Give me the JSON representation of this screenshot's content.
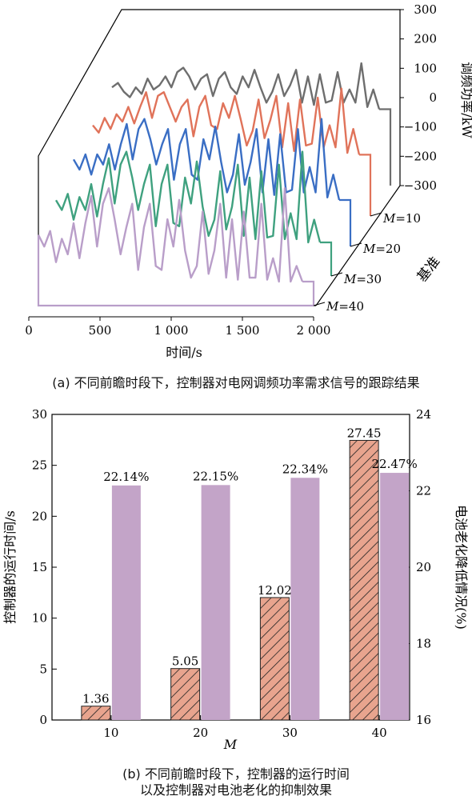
{
  "chart_data": [
    {
      "type": "line",
      "view": "3d-waterfall",
      "caption": "(a) 不同前瞻时段下，控制器对电网调频功率需求信号的跟踪结果",
      "xlabel": "时间/s",
      "x_ticks": [
        "0",
        "500",
        "1 000",
        "1 500",
        "2 000"
      ],
      "xlim": [
        0,
        2000
      ],
      "zlabel": "调频功率/kW",
      "z_ticks": [
        "300",
        "200",
        "100",
        "0",
        "−100",
        "−200",
        "−300"
      ],
      "zlim": [
        -300,
        300
      ],
      "depth_label": "基准",
      "series": [
        {
          "name": "基准",
          "color": "#6e6e6e",
          "values": [
            -60,
            -20,
            -100,
            -150,
            -60,
            -120,
            20,
            -80,
            -40,
            40,
            -60,
            80,
            120,
            40,
            -80,
            20,
            60,
            -140,
            20,
            80,
            -60,
            -120,
            40,
            -60,
            100,
            -60,
            -200,
            -100,
            60,
            -140,
            -40,
            100,
            -200,
            40,
            -220,
            60,
            -200,
            -180,
            80,
            -200,
            -80,
            -200,
            160,
            -240,
            -80,
            -260
          ]
        },
        {
          "name": "M=10",
          "color": "#e0735a",
          "values": [
            -120,
            -160,
            -80,
            -140,
            -60,
            -100,
            -20,
            -110,
            -20,
            60,
            -80,
            40,
            60,
            -20,
            -100,
            -20,
            20,
            -180,
            -20,
            40,
            -120,
            -140,
            0,
            -80,
            40,
            -90,
            -230,
            -150,
            20,
            -190,
            -90,
            40,
            -240,
            0,
            -260,
            20,
            -230,
            -220,
            30,
            -240,
            -120,
            -240,
            80,
            -270,
            -140,
            -280
          ]
        },
        {
          "name": "M=20",
          "color": "#3a6ec4",
          "values": [
            -140,
            -180,
            -120,
            -200,
            -120,
            -160,
            -80,
            -180,
            -80,
            0,
            -140,
            -20,
            20,
            -60,
            -160,
            -80,
            -20,
            -220,
            -80,
            -20,
            -200,
            -220,
            -60,
            -140,
            -10,
            -150,
            -270,
            -200,
            -40,
            -240,
            -150,
            -20,
            -270,
            -60,
            -280,
            -40,
            -270,
            -260,
            -20,
            -270,
            -170,
            -270,
            20,
            -290,
            -200,
            -300
          ]
        },
        {
          "name": "M=30",
          "color": "#3fa17f",
          "values": [
            -170,
            -200,
            -150,
            -230,
            -160,
            -200,
            -120,
            -220,
            -120,
            -40,
            -180,
            -60,
            -20,
            -100,
            -200,
            -120,
            -60,
            -250,
            -120,
            -60,
            -240,
            -250,
            -100,
            -180,
            -50,
            -190,
            -280,
            -230,
            -80,
            -260,
            -190,
            -60,
            -280,
            -100,
            -290,
            -80,
            -285,
            -280,
            -60,
            -290,
            -210,
            -290,
            -20,
            -300,
            -230,
            -300
          ]
        },
        {
          "name": "M=40",
          "color": "#b99ec9",
          "values": [
            -180,
            -210,
            -170,
            -250,
            -190,
            -230,
            -150,
            -240,
            -150,
            -80,
            -210,
            -100,
            -60,
            -140,
            -230,
            -160,
            -100,
            -270,
            -160,
            -100,
            -260,
            -270,
            -140,
            -210,
            -90,
            -220,
            -290,
            -260,
            -120,
            -280,
            -220,
            -100,
            -290,
            -140,
            -295,
            -120,
            -290,
            -290,
            -100,
            -295,
            -240,
            -300,
            -60,
            -300,
            -260,
            -300
          ]
        }
      ]
    },
    {
      "type": "bar",
      "caption_lines": [
        "(b) 不同前瞻时段下，控制器的运行时间",
        "以及控制器对电池老化的抑制效果"
      ],
      "xlabel": "M",
      "categories": [
        "10",
        "20",
        "30",
        "40"
      ],
      "ylabel_left": "控制器的运行时间/s",
      "ylabel_right": "电池老化降低情况(%)",
      "ylim_left": [
        0,
        30
      ],
      "ylim_right": [
        16,
        24
      ],
      "left_ticks": [
        "0",
        "5",
        "10",
        "15",
        "20",
        "25",
        "30"
      ],
      "right_ticks": [
        "16",
        "18",
        "20",
        "22",
        "24"
      ],
      "series": [
        {
          "axis": "left",
          "color": "#e8a48e",
          "pattern": "hatch",
          "values": [
            1.36,
            5.05,
            12.02,
            27.45
          ],
          "labels": [
            "1.36",
            "5.05",
            "12.02",
            "27.45"
          ]
        },
        {
          "axis": "right",
          "color": "#c3a4c8",
          "values": [
            22.14,
            22.15,
            22.34,
            22.47
          ],
          "labels": [
            "22.14%",
            "22.15%",
            "22.34%",
            "22.47%"
          ]
        }
      ]
    }
  ]
}
